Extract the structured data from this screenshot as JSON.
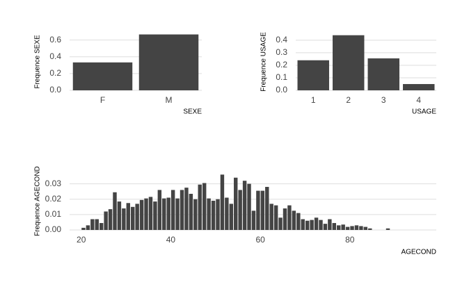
{
  "chart_data": [
    {
      "type": "bar",
      "xlabel": "SEXE",
      "ylabel": "Frequence SEXE",
      "categories": [
        "F",
        "M"
      ],
      "values": [
        0.333,
        0.667
      ],
      "color": "#444444",
      "ylim": [
        0,
        0.68
      ],
      "yticks": [
        {
          "value": 0,
          "label": "0.0"
        },
        0.2,
        0.4,
        0.6
      ],
      "grid": true
    },
    {
      "type": "bar",
      "xlabel": "USAGE",
      "ylabel": "Frequence USAGE",
      "categories": [
        "1",
        "2",
        "3",
        "4"
      ],
      "values": [
        0.24,
        0.44,
        0.255,
        0.05
      ],
      "color": "#444444",
      "ylim": [
        0,
        0.455
      ],
      "yticks": [
        {
          "value": 0,
          "label": "0.0"
        },
        0.1,
        0.2,
        0.3,
        0.4
      ],
      "grid": true
    },
    {
      "type": "histogram",
      "xlabel": "AGECOND",
      "ylabel": "Frequence AGECOND",
      "color": "#444444",
      "bins": [
        20,
        21,
        22,
        23,
        24,
        25,
        26,
        27,
        28,
        29,
        30,
        31,
        32,
        33,
        34,
        35,
        36,
        37,
        38,
        39,
        40,
        41,
        42,
        43,
        44,
        45,
        46,
        47,
        48,
        49,
        50,
        51,
        52,
        53,
        54,
        55,
        56,
        57,
        58,
        59,
        60,
        61,
        62,
        63,
        64,
        65,
        66,
        67,
        68,
        69,
        70,
        71,
        72,
        73,
        74,
        75,
        76,
        77,
        78,
        79,
        80,
        81,
        82,
        83,
        84,
        85,
        86,
        87,
        88,
        89
      ],
      "values": [
        0.0014,
        0.003,
        0.007,
        0.007,
        0.0045,
        0.012,
        0.0135,
        0.0245,
        0.0185,
        0.014,
        0.0175,
        0.015,
        0.017,
        0.0195,
        0.0205,
        0.0215,
        0.0185,
        0.026,
        0.0205,
        0.021,
        0.026,
        0.0205,
        0.026,
        0.0275,
        0.0235,
        0.02,
        0.0295,
        0.0305,
        0.0205,
        0.019,
        0.02,
        0.036,
        0.021,
        0.017,
        0.034,
        0.026,
        0.032,
        0.03,
        0.0125,
        0.0255,
        0.0255,
        0.028,
        0.017,
        0.016,
        0.008,
        0.014,
        0.016,
        0.0125,
        0.011,
        0.007,
        0.006,
        0.0065,
        0.008,
        0.0065,
        0.004,
        0.007,
        0.0045,
        0.003,
        0.0035,
        0.002,
        0.0025,
        0.003,
        0.0025,
        0.002,
        0.001,
        0,
        0,
        0,
        0.001
      ],
      "xlim": [
        17.4,
        99.3
      ],
      "xticks": [
        20,
        40,
        60,
        80
      ],
      "ylim": [
        0,
        0.0375
      ],
      "yticks": [
        {
          "value": 0,
          "label": "0.00"
        },
        0.01,
        0.02,
        0.03
      ],
      "grid": true
    }
  ]
}
